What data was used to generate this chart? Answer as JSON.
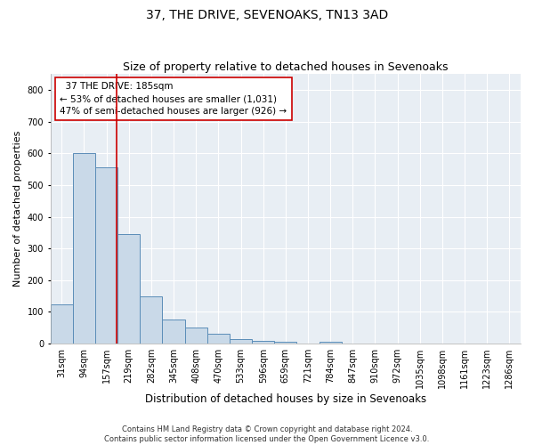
{
  "title": "37, THE DRIVE, SEVENOAKS, TN13 3AD",
  "subtitle": "Size of property relative to detached houses in Sevenoaks",
  "xlabel": "Distribution of detached houses by size in Sevenoaks",
  "ylabel": "Number of detached properties",
  "categories": [
    "31sqm",
    "94sqm",
    "157sqm",
    "219sqm",
    "282sqm",
    "345sqm",
    "408sqm",
    "470sqm",
    "533sqm",
    "596sqm",
    "659sqm",
    "721sqm",
    "784sqm",
    "847sqm",
    "910sqm",
    "972sqm",
    "1035sqm",
    "1098sqm",
    "1161sqm",
    "1223sqm",
    "1286sqm"
  ],
  "values": [
    125,
    600,
    555,
    345,
    150,
    75,
    52,
    30,
    14,
    10,
    7,
    0,
    7,
    0,
    0,
    0,
    0,
    0,
    0,
    0,
    0
  ],
  "bar_color": "#c9d9e8",
  "bar_edge_color": "#5b8db8",
  "vline_color": "#cc0000",
  "annotation_text": "  37 THE DRIVE: 185sqm\n← 53% of detached houses are smaller (1,031)\n47% of semi-detached houses are larger (926) →",
  "annotation_box_color": "#cc0000",
  "ylim": [
    0,
    850
  ],
  "yticks": [
    0,
    100,
    200,
    300,
    400,
    500,
    600,
    700,
    800
  ],
  "background_color": "#e8eef4",
  "grid_color": "#ffffff",
  "footer": "Contains HM Land Registry data © Crown copyright and database right 2024.\nContains public sector information licensed under the Open Government Licence v3.0.",
  "title_fontsize": 10,
  "subtitle_fontsize": 9,
  "xlabel_fontsize": 8.5,
  "ylabel_fontsize": 8,
  "annot_fontsize": 7.5,
  "tick_fontsize": 7,
  "footer_fontsize": 6
}
